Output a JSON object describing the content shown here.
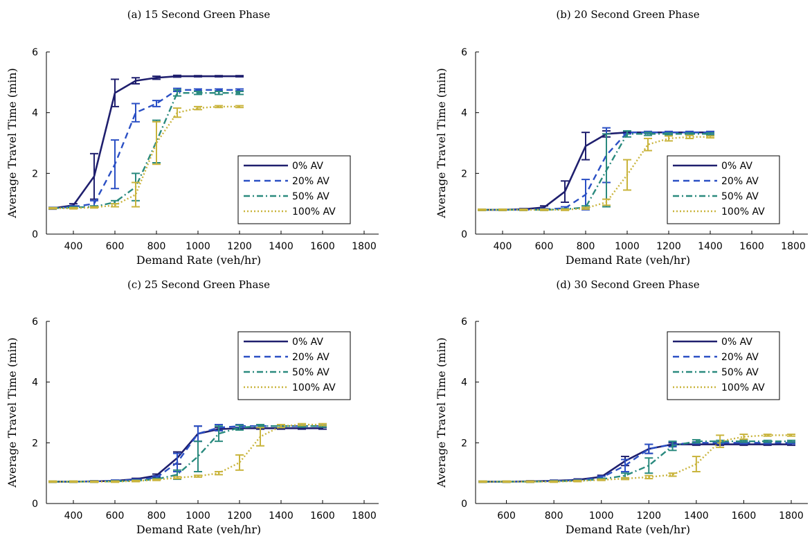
{
  "chart_data": [
    {
      "type": "line",
      "title": "(a) 15 Second Green Phase",
      "xlabel": "Demand Rate (veh/hr)",
      "ylabel": "Average Travel Time (min)",
      "xlim": [
        270,
        1870
      ],
      "ylim": [
        0,
        6
      ],
      "xticks": [
        400,
        600,
        800,
        1000,
        1200,
        1400,
        1600,
        1800
      ],
      "yticks": [
        0,
        2,
        4,
        6
      ],
      "grid": false,
      "legend_position": "lower-right",
      "series": [
        {
          "name": "0% AV",
          "x": [
            300,
            400,
            500,
            600,
            700,
            800,
            900,
            1000,
            1100,
            1200
          ],
          "y": [
            0.85,
            0.95,
            1.9,
            4.65,
            5.05,
            5.15,
            5.2,
            5.2,
            5.2,
            5.2
          ],
          "err": [
            0.03,
            0.05,
            0.75,
            0.45,
            0.1,
            0.05,
            0.03,
            0.02,
            0.02,
            0.02
          ]
        },
        {
          "name": "20% AV",
          "x": [
            300,
            400,
            500,
            600,
            700,
            800,
            900,
            1000,
            1100,
            1200
          ],
          "y": [
            0.85,
            0.9,
            1.0,
            2.3,
            4.0,
            4.3,
            4.75,
            4.75,
            4.75,
            4.75
          ],
          "err": [
            0.03,
            0.03,
            0.1,
            0.8,
            0.3,
            0.1,
            0.05,
            0.03,
            0.03,
            0.03
          ]
        },
        {
          "name": "50% AV",
          "x": [
            300,
            400,
            500,
            600,
            700,
            800,
            900,
            1000,
            1100,
            1200
          ],
          "y": [
            0.85,
            0.88,
            0.9,
            1.05,
            1.55,
            3.05,
            4.65,
            4.65,
            4.65,
            4.65
          ],
          "err": [
            0.02,
            0.02,
            0.03,
            0.05,
            0.45,
            0.7,
            0.1,
            0.05,
            0.05,
            0.05
          ]
        },
        {
          "name": "100% AV",
          "x": [
            300,
            400,
            500,
            600,
            700,
            800,
            900,
            1000,
            1100,
            1200
          ],
          "y": [
            0.85,
            0.85,
            0.88,
            0.95,
            1.3,
            3.0,
            4.0,
            4.15,
            4.2,
            4.2
          ],
          "err": [
            0.02,
            0.02,
            0.02,
            0.05,
            0.4,
            0.7,
            0.15,
            0.05,
            0.03,
            0.03
          ]
        }
      ]
    },
    {
      "type": "line",
      "title": "(b) 20 Second Green Phase",
      "xlabel": "Demand Rate (veh/hr)",
      "ylabel": "Average Travel Time (min)",
      "xlim": [
        270,
        1870
      ],
      "ylim": [
        0,
        6
      ],
      "xticks": [
        400,
        600,
        800,
        1000,
        1200,
        1400,
        1600,
        1800
      ],
      "yticks": [
        0,
        2,
        4,
        6
      ],
      "grid": false,
      "legend_position": "lower-right",
      "series": [
        {
          "name": "0% AV",
          "x": [
            300,
            400,
            500,
            600,
            700,
            800,
            900,
            1000,
            1100,
            1200,
            1300,
            1400
          ],
          "y": [
            0.8,
            0.8,
            0.82,
            0.88,
            1.4,
            2.9,
            3.3,
            3.35,
            3.35,
            3.35,
            3.35,
            3.35
          ],
          "err": [
            0.02,
            0.02,
            0.02,
            0.05,
            0.35,
            0.45,
            0.1,
            0.03,
            0.03,
            0.03,
            0.03,
            0.03
          ]
        },
        {
          "name": "20% AV",
          "x": [
            300,
            400,
            500,
            600,
            700,
            800,
            900,
            1000,
            1100,
            1200,
            1300,
            1400
          ],
          "y": [
            0.8,
            0.8,
            0.8,
            0.82,
            0.85,
            1.3,
            2.6,
            3.35,
            3.35,
            3.35,
            3.35,
            3.35
          ],
          "err": [
            0.02,
            0.02,
            0.02,
            0.02,
            0.05,
            0.5,
            0.9,
            0.05,
            0.03,
            0.03,
            0.03,
            0.03
          ]
        },
        {
          "name": "50% AV",
          "x": [
            300,
            400,
            500,
            600,
            700,
            800,
            900,
            1000,
            1100,
            1200,
            1300,
            1400
          ],
          "y": [
            0.8,
            0.8,
            0.8,
            0.8,
            0.82,
            0.88,
            2.1,
            3.3,
            3.3,
            3.3,
            3.3,
            3.3
          ],
          "err": [
            0.02,
            0.02,
            0.02,
            0.02,
            0.02,
            0.05,
            1.2,
            0.1,
            0.05,
            0.03,
            0.03,
            0.03
          ]
        },
        {
          "name": "100% AV",
          "x": [
            300,
            400,
            500,
            600,
            700,
            800,
            900,
            1000,
            1100,
            1200,
            1300,
            1400
          ],
          "y": [
            0.8,
            0.8,
            0.8,
            0.8,
            0.8,
            0.85,
            1.05,
            1.95,
            2.95,
            3.15,
            3.2,
            3.2
          ],
          "err": [
            0.02,
            0.02,
            0.02,
            0.02,
            0.02,
            0.03,
            0.1,
            0.5,
            0.2,
            0.08,
            0.05,
            0.03
          ]
        }
      ]
    },
    {
      "type": "line",
      "title": "(c) 25 Second Green Phase",
      "xlabel": "Demand Rate (veh/hr)",
      "ylabel": "Average Travel Time (min)",
      "xlim": [
        270,
        1870
      ],
      "ylim": [
        0,
        6
      ],
      "xticks": [
        400,
        600,
        800,
        1000,
        1200,
        1400,
        1600,
        1800
      ],
      "yticks": [
        0,
        2,
        4,
        6
      ],
      "grid": false,
      "legend_position": "top-right",
      "series": [
        {
          "name": "0% AV",
          "x": [
            300,
            400,
            500,
            600,
            700,
            800,
            900,
            1000,
            1100,
            1200,
            1300,
            1400,
            1500,
            1600
          ],
          "y": [
            0.72,
            0.72,
            0.73,
            0.75,
            0.8,
            0.92,
            1.5,
            2.3,
            2.45,
            2.48,
            2.48,
            2.48,
            2.48,
            2.48
          ],
          "err": [
            0.02,
            0.02,
            0.02,
            0.02,
            0.03,
            0.05,
            0.2,
            0.25,
            0.05,
            0.03,
            0.03,
            0.03,
            0.03,
            0.03
          ]
        },
        {
          "name": "20% AV",
          "x": [
            300,
            400,
            500,
            600,
            700,
            800,
            900,
            1000,
            1100,
            1200,
            1300,
            1400,
            1500,
            1600
          ],
          "y": [
            0.72,
            0.72,
            0.73,
            0.75,
            0.78,
            0.85,
            1.35,
            2.3,
            2.5,
            2.55,
            2.55,
            2.55,
            2.55,
            2.55
          ],
          "err": [
            0.02,
            0.02,
            0.02,
            0.02,
            0.02,
            0.05,
            0.3,
            0.25,
            0.1,
            0.05,
            0.03,
            0.03,
            0.03,
            0.03
          ]
        },
        {
          "name": "50% AV",
          "x": [
            300,
            400,
            500,
            600,
            700,
            800,
            900,
            1000,
            1100,
            1200,
            1300,
            1400,
            1500,
            1600
          ],
          "y": [
            0.72,
            0.72,
            0.72,
            0.73,
            0.75,
            0.8,
            0.95,
            1.55,
            2.3,
            2.5,
            2.55,
            2.55,
            2.55,
            2.55
          ],
          "err": [
            0.02,
            0.02,
            0.02,
            0.02,
            0.02,
            0.03,
            0.15,
            0.5,
            0.25,
            0.08,
            0.05,
            0.03,
            0.03,
            0.03
          ]
        },
        {
          "name": "100% AV",
          "x": [
            300,
            400,
            500,
            600,
            700,
            800,
            900,
            1000,
            1100,
            1200,
            1300,
            1400,
            1500,
            1600
          ],
          "y": [
            0.72,
            0.72,
            0.72,
            0.72,
            0.74,
            0.78,
            0.85,
            0.9,
            1.0,
            1.35,
            2.2,
            2.55,
            2.6,
            2.6
          ],
          "err": [
            0.02,
            0.02,
            0.02,
            0.02,
            0.02,
            0.02,
            0.03,
            0.03,
            0.05,
            0.25,
            0.3,
            0.05,
            0.03,
            0.03
          ]
        }
      ]
    },
    {
      "type": "line",
      "title": "(d) 30 Second Green Phase",
      "xlabel": "Demand Rate (veh/hr)",
      "ylabel": "Average Travel Time (min)",
      "xlim": [
        470,
        1870
      ],
      "ylim": [
        0,
        6
      ],
      "xticks": [
        400,
        600,
        800,
        1000,
        1200,
        1400,
        1600,
        1800
      ],
      "yticks": [
        0,
        2,
        4,
        6
      ],
      "grid": false,
      "legend_position": "top-right",
      "series": [
        {
          "name": "0% AV",
          "x": [
            500,
            600,
            700,
            800,
            900,
            1000,
            1100,
            1200,
            1300,
            1400,
            1500,
            1600,
            1700,
            1800
          ],
          "y": [
            0.72,
            0.72,
            0.73,
            0.75,
            0.78,
            0.88,
            1.4,
            1.8,
            1.95,
            1.95,
            1.95,
            1.95,
            1.95,
            1.95
          ],
          "err": [
            0.02,
            0.02,
            0.02,
            0.02,
            0.03,
            0.05,
            0.15,
            0.15,
            0.05,
            0.03,
            0.03,
            0.03,
            0.03,
            0.03
          ]
        },
        {
          "name": "20% AV",
          "x": [
            500,
            600,
            700,
            800,
            900,
            1000,
            1100,
            1200,
            1300,
            1400,
            1500,
            1600,
            1700,
            1800
          ],
          "y": [
            0.72,
            0.72,
            0.72,
            0.74,
            0.77,
            0.85,
            1.25,
            1.8,
            1.95,
            2.0,
            2.0,
            2.0,
            2.0,
            2.0
          ],
          "err": [
            0.02,
            0.02,
            0.02,
            0.02,
            0.02,
            0.05,
            0.2,
            0.15,
            0.08,
            0.03,
            0.03,
            0.03,
            0.03,
            0.03
          ]
        },
        {
          "name": "50% AV",
          "x": [
            500,
            600,
            700,
            800,
            900,
            1000,
            1100,
            1200,
            1300,
            1400,
            1500,
            1600,
            1700,
            1800
          ],
          "y": [
            0.72,
            0.72,
            0.72,
            0.73,
            0.75,
            0.8,
            0.92,
            1.25,
            1.9,
            2.05,
            2.05,
            2.05,
            2.05,
            2.05
          ],
          "err": [
            0.02,
            0.02,
            0.02,
            0.02,
            0.02,
            0.03,
            0.08,
            0.25,
            0.15,
            0.05,
            0.03,
            0.03,
            0.03,
            0.03
          ]
        },
        {
          "name": "100% AV",
          "x": [
            500,
            600,
            700,
            800,
            900,
            1000,
            1100,
            1200,
            1300,
            1400,
            1500,
            1600,
            1700,
            1800
          ],
          "y": [
            0.72,
            0.72,
            0.72,
            0.72,
            0.74,
            0.78,
            0.82,
            0.87,
            0.95,
            1.3,
            2.05,
            2.2,
            2.25,
            2.25
          ],
          "err": [
            0.02,
            0.02,
            0.02,
            0.02,
            0.02,
            0.02,
            0.03,
            0.05,
            0.05,
            0.25,
            0.2,
            0.08,
            0.03,
            0.03
          ]
        }
      ]
    }
  ],
  "series_styles": [
    {
      "color": "#1f1f6e",
      "dash": ""
    },
    {
      "color": "#2a4fc4",
      "dash": "9,6"
    },
    {
      "color": "#2a8a7e",
      "dash": "9,4,2,4"
    },
    {
      "color": "#c9b43c",
      "dash": "2,3"
    }
  ]
}
